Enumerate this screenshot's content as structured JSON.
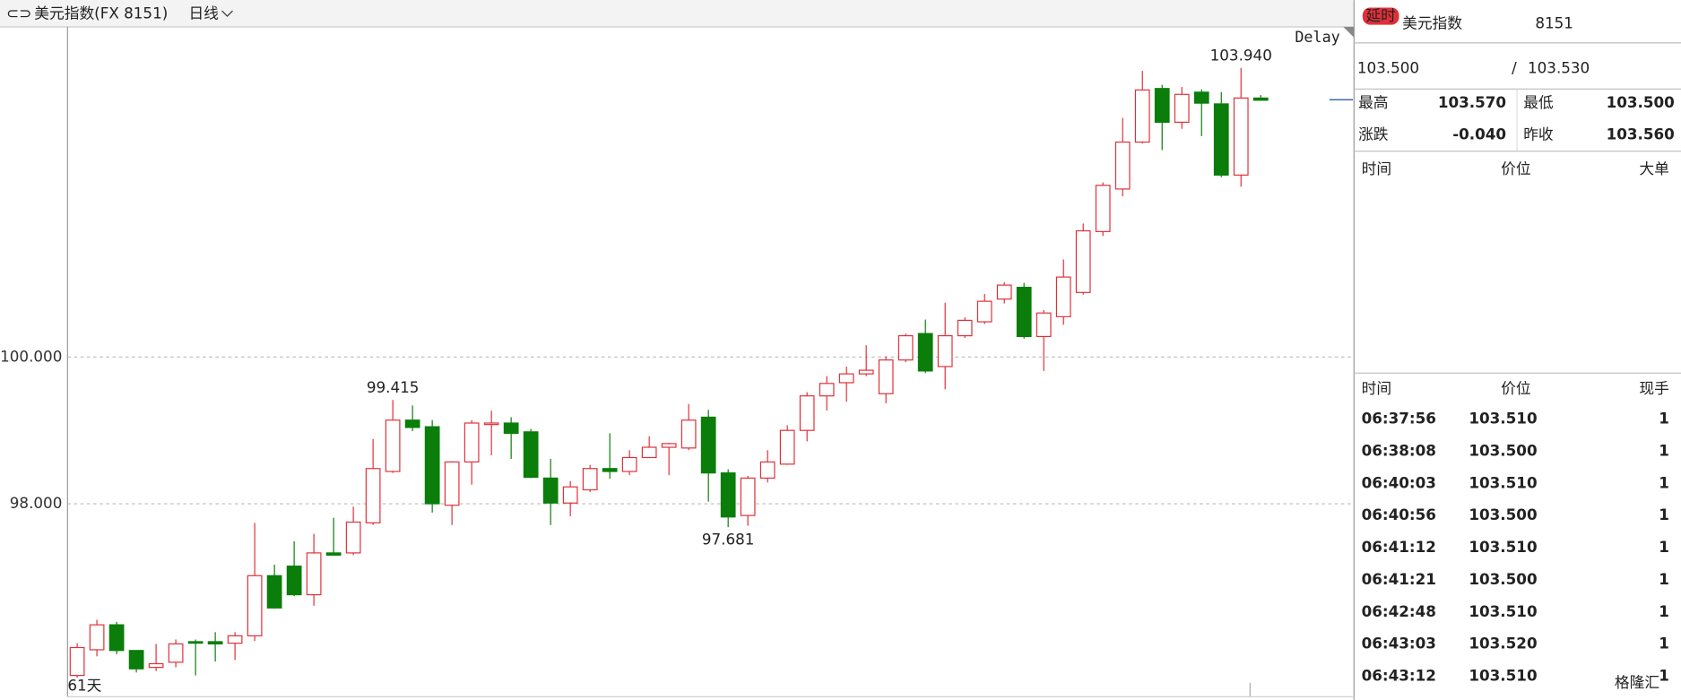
{
  "toolbar": {
    "symbol": "美元指数(FX 8151)",
    "period": "日线"
  },
  "chart_data": {
    "type": "candlestick",
    "delay_label": "Delay",
    "count_label": "61天",
    "up_color": "#e0303a",
    "down_color": "#0a7d0a",
    "ylim": [
      95.37,
      104.5
    ],
    "yticks": [
      {
        "value": 98,
        "label": "98.000"
      },
      {
        "value": 100,
        "label": "100.000"
      }
    ],
    "grid": true,
    "candles": [
      {
        "open": 95.66,
        "high": 96.1,
        "low": 95.63,
        "close": 96.04
      },
      {
        "open": 96.01,
        "high": 96.42,
        "low": 95.92,
        "close": 96.35
      },
      {
        "open": 96.35,
        "high": 96.39,
        "low": 95.95,
        "close": 96.0
      },
      {
        "open": 96.0,
        "high": 96.0,
        "low": 95.7,
        "close": 95.75
      },
      {
        "open": 95.77,
        "high": 96.09,
        "low": 95.72,
        "close": 95.82
      },
      {
        "open": 95.84,
        "high": 96.15,
        "low": 95.77,
        "close": 96.09
      },
      {
        "open": 96.12,
        "high": 96.15,
        "low": 95.66,
        "close": 96.1
      },
      {
        "open": 96.12,
        "high": 96.25,
        "low": 95.85,
        "close": 96.09
      },
      {
        "open": 96.1,
        "high": 96.25,
        "low": 95.87,
        "close": 96.2
      },
      {
        "open": 96.2,
        "high": 97.74,
        "low": 96.13,
        "close": 97.02
      },
      {
        "open": 97.02,
        "high": 97.17,
        "low": 96.57,
        "close": 96.58
      },
      {
        "open": 97.15,
        "high": 97.49,
        "low": 96.74,
        "close": 96.76
      },
      {
        "open": 96.76,
        "high": 97.59,
        "low": 96.61,
        "close": 97.33
      },
      {
        "open": 97.33,
        "high": 97.81,
        "low": 97.3,
        "close": 97.3
      },
      {
        "open": 97.33,
        "high": 97.96,
        "low": 97.3,
        "close": 97.75
      },
      {
        "open": 97.74,
        "high": 98.88,
        "low": 97.71,
        "close": 98.48
      },
      {
        "open": 98.44,
        "high": 99.415,
        "low": 98.42,
        "close": 99.14
      },
      {
        "open": 99.14,
        "high": 99.34,
        "low": 98.99,
        "close": 99.04
      },
      {
        "open": 99.05,
        "high": 99.14,
        "low": 97.88,
        "close": 98.0
      },
      {
        "open": 97.98,
        "high": 98.58,
        "low": 97.71,
        "close": 98.57
      },
      {
        "open": 98.57,
        "high": 99.14,
        "low": 98.26,
        "close": 99.1
      },
      {
        "open": 99.08,
        "high": 99.27,
        "low": 98.66,
        "close": 99.1
      },
      {
        "open": 99.1,
        "high": 99.18,
        "low": 98.61,
        "close": 98.96
      },
      {
        "open": 98.98,
        "high": 99.02,
        "low": 98.35,
        "close": 98.36
      },
      {
        "open": 98.35,
        "high": 98.61,
        "low": 97.71,
        "close": 98.01
      },
      {
        "open": 98.01,
        "high": 98.31,
        "low": 97.83,
        "close": 98.23
      },
      {
        "open": 98.19,
        "high": 98.53,
        "low": 98.16,
        "close": 98.48
      },
      {
        "open": 98.48,
        "high": 98.96,
        "low": 98.34,
        "close": 98.44
      },
      {
        "open": 98.44,
        "high": 98.73,
        "low": 98.39,
        "close": 98.63
      },
      {
        "open": 98.63,
        "high": 98.92,
        "low": 98.63,
        "close": 98.77
      },
      {
        "open": 98.77,
        "high": 98.83,
        "low": 98.39,
        "close": 98.82
      },
      {
        "open": 98.76,
        "high": 99.36,
        "low": 98.73,
        "close": 99.14
      },
      {
        "open": 99.18,
        "high": 99.28,
        "low": 98.03,
        "close": 98.42
      },
      {
        "open": 98.42,
        "high": 98.47,
        "low": 97.681,
        "close": 97.82
      },
      {
        "open": 97.84,
        "high": 98.38,
        "low": 97.7,
        "close": 98.35
      },
      {
        "open": 98.35,
        "high": 98.73,
        "low": 98.29,
        "close": 98.57
      },
      {
        "open": 98.54,
        "high": 99.07,
        "low": 98.53,
        "close": 99.0
      },
      {
        "open": 99.0,
        "high": 99.52,
        "low": 98.85,
        "close": 99.47
      },
      {
        "open": 99.47,
        "high": 99.74,
        "low": 99.27,
        "close": 99.64
      },
      {
        "open": 99.65,
        "high": 99.87,
        "low": 99.39,
        "close": 99.77
      },
      {
        "open": 99.77,
        "high": 100.16,
        "low": 99.74,
        "close": 99.82
      },
      {
        "open": 99.5,
        "high": 100.01,
        "low": 99.37,
        "close": 99.96
      },
      {
        "open": 99.96,
        "high": 100.32,
        "low": 99.93,
        "close": 100.29
      },
      {
        "open": 100.32,
        "high": 100.51,
        "low": 99.78,
        "close": 99.81
      },
      {
        "open": 99.87,
        "high": 100.74,
        "low": 99.56,
        "close": 100.29
      },
      {
        "open": 100.29,
        "high": 100.54,
        "low": 100.26,
        "close": 100.5
      },
      {
        "open": 100.48,
        "high": 100.86,
        "low": 100.45,
        "close": 100.76
      },
      {
        "open": 100.79,
        "high": 101.02,
        "low": 100.73,
        "close": 100.98
      },
      {
        "open": 100.95,
        "high": 101.01,
        "low": 100.25,
        "close": 100.28
      },
      {
        "open": 100.28,
        "high": 100.64,
        "low": 99.81,
        "close": 100.6
      },
      {
        "open": 100.55,
        "high": 101.33,
        "low": 100.44,
        "close": 101.09
      },
      {
        "open": 100.88,
        "high": 101.82,
        "low": 100.85,
        "close": 101.72
      },
      {
        "open": 101.71,
        "high": 102.38,
        "low": 101.65,
        "close": 102.34
      },
      {
        "open": 102.29,
        "high": 103.26,
        "low": 102.19,
        "close": 102.93
      },
      {
        "open": 102.93,
        "high": 103.9,
        "low": 102.91,
        "close": 103.64
      },
      {
        "open": 103.66,
        "high": 103.71,
        "low": 102.82,
        "close": 103.2
      },
      {
        "open": 103.2,
        "high": 103.68,
        "low": 103.11,
        "close": 103.58
      },
      {
        "open": 103.61,
        "high": 103.65,
        "low": 103.01,
        "close": 103.46
      },
      {
        "open": 103.45,
        "high": 103.61,
        "low": 102.45,
        "close": 102.48
      },
      {
        "open": 102.48,
        "high": 103.94,
        "low": 102.32,
        "close": 103.53
      },
      {
        "open": 103.53,
        "high": 103.57,
        "low": 103.5,
        "close": 103.5
      }
    ],
    "annotations": [
      {
        "value": 103.94,
        "label": "103.940",
        "color": "#e0303a"
      },
      {
        "value": 99.415,
        "label": "99.415",
        "color": "#e0303a"
      },
      {
        "value": 97.681,
        "label": "97.681",
        "color": "#0a7d0a"
      }
    ]
  },
  "quote": {
    "badge": "延时",
    "name": "美元指数",
    "code": "8151",
    "bid": "103.500",
    "separator": "/",
    "ask": "103.530",
    "stats": [
      {
        "label": "最高",
        "value": "103.570",
        "color": "#e0303a"
      },
      {
        "label": "最低",
        "value": "103.500",
        "color": "#0a7d0a"
      },
      {
        "label": "涨跌",
        "value": "-0.040",
        "color": "#0a7d0a"
      },
      {
        "label": "昨收",
        "value": "103.560",
        "color": "#111111"
      }
    ],
    "big_orders_header": [
      "时间",
      "价位",
      "大单"
    ],
    "trades_header": [
      "时间",
      "价位",
      "现手"
    ],
    "trades": [
      {
        "time": "06:37:56",
        "price": "103.510",
        "hand": "1",
        "color": "#e0303a"
      },
      {
        "time": "06:38:08",
        "price": "103.500",
        "hand": "1",
        "color": "#0a7d0a"
      },
      {
        "time": "06:40:03",
        "price": "103.510",
        "hand": "1",
        "color": "#e0303a"
      },
      {
        "time": "06:40:56",
        "price": "103.500",
        "hand": "1",
        "color": "#0a7d0a"
      },
      {
        "time": "06:41:12",
        "price": "103.510",
        "hand": "1",
        "color": "#e0303a"
      },
      {
        "time": "06:41:21",
        "price": "103.500",
        "hand": "1",
        "color": "#0a7d0a"
      },
      {
        "time": "06:42:48",
        "price": "103.510",
        "hand": "1",
        "color": "#e0303a"
      },
      {
        "time": "06:43:03",
        "price": "103.520",
        "hand": "1",
        "color": "#e0303a"
      },
      {
        "time": "06:43:12",
        "price": "103.510",
        "hand": "1",
        "color": "#0a7d0a"
      }
    ],
    "watermark": "格隆汇"
  }
}
